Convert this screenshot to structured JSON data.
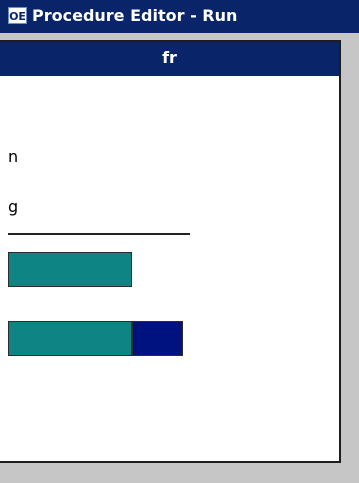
{
  "window": {
    "title": "Procedure Editor - Run",
    "icon_label": "OE"
  },
  "panel": {
    "header": "fr",
    "rows": [
      {
        "text": "n"
      },
      {
        "text": "g"
      }
    ]
  },
  "bars": [
    {
      "teal_fraction": 0.68,
      "navy_fraction": 0
    },
    {
      "teal_fraction": 0.68,
      "navy_fraction": 0.28
    }
  ],
  "colors": {
    "title_bar": "#0a246a",
    "header": "#0a246a",
    "teal": "#0f8484",
    "navy": "#00127f",
    "background": "#c6c6c6"
  }
}
